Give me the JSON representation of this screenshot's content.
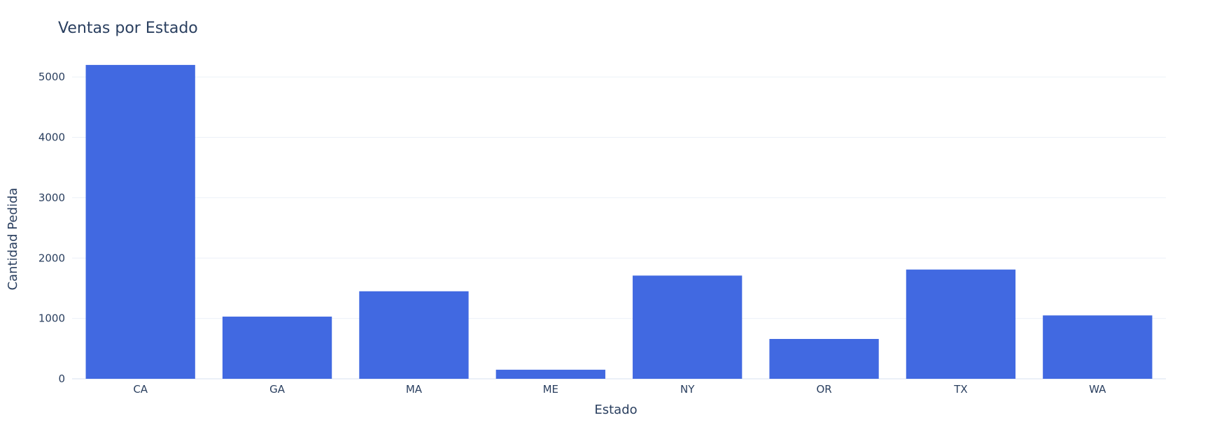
{
  "chart_data": {
    "type": "bar",
    "title": "Ventas por Estado",
    "xlabel": "Estado",
    "ylabel": "Cantidad Pedida",
    "categories": [
      "CA",
      "GA",
      "MA",
      "ME",
      "NY",
      "OR",
      "TX",
      "WA"
    ],
    "values": [
      5200,
      1030,
      1450,
      150,
      1710,
      660,
      1810,
      1050
    ],
    "ylim": [
      0,
      5500
    ],
    "yticks": [
      0,
      1000,
      2000,
      3000,
      4000,
      5000
    ],
    "grid": true,
    "bar_color": "#4169e1",
    "text_color": "#2a3f5f",
    "grid_color": "#ebf0f8"
  }
}
